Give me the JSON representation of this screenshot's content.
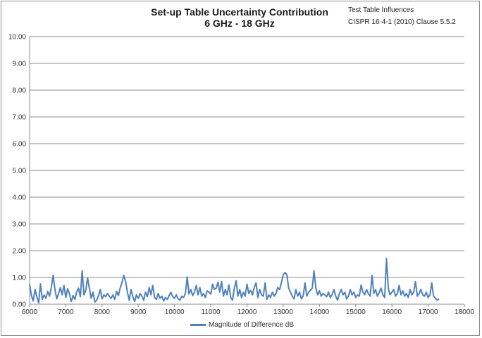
{
  "chart_data": {
    "type": "line",
    "title": "Set-up Table Uncertainty Contribution",
    "subtitle": "6 GHz - 18 GHz",
    "annotation": [
      "Test Table Influences",
      "CISPR 16-4-1 (2010) Clause 5.5.2"
    ],
    "xlabel": "",
    "ylabel": "",
    "xlim": [
      6000,
      18000
    ],
    "ylim": [
      0,
      10
    ],
    "x_ticks": [
      6000,
      7000,
      8000,
      9000,
      10000,
      11000,
      12000,
      13000,
      14000,
      15000,
      16000,
      17000,
      18000
    ],
    "y_ticks": [
      "0.00",
      "1.00",
      "2.00",
      "3.00",
      "4.00",
      "5.00",
      "6.00",
      "7.00",
      "8.00",
      "9.00",
      "10.00"
    ],
    "grid": {
      "horizontal": true,
      "vertical": false
    },
    "legend": "bottom",
    "colors": {
      "series": "#4f81bd",
      "axis": "#8c8c8c"
    },
    "series": [
      {
        "name": "Magnitude of Difference dB",
        "x_start": 6000,
        "x_step": 50,
        "values": [
          0.75,
          0.32,
          0.12,
          0.55,
          0.28,
          0.05,
          0.76,
          0.18,
          0.35,
          0.22,
          0.48,
          0.3,
          0.62,
          1.08,
          0.55,
          0.2,
          0.4,
          0.62,
          0.35,
          0.7,
          0.25,
          0.58,
          0.38,
          0.1,
          0.32,
          0.18,
          0.45,
          0.6,
          0.28,
          1.25,
          0.35,
          0.52,
          0.98,
          0.6,
          0.22,
          0.45,
          0.08,
          0.15,
          0.3,
          0.55,
          0.2,
          0.35,
          0.28,
          0.4,
          0.3,
          0.22,
          0.35,
          0.18,
          0.48,
          0.32,
          0.6,
          0.8,
          1.08,
          0.85,
          0.45,
          0.15,
          0.55,
          0.28,
          0.1,
          0.35,
          0.22,
          0.4,
          0.3,
          0.15,
          0.45,
          0.28,
          0.62,
          0.35,
          0.7,
          0.25,
          0.18,
          0.4,
          0.22,
          0.3,
          0.12,
          0.25,
          0.18,
          0.32,
          0.45,
          0.28,
          0.22,
          0.35,
          0.2,
          0.15,
          0.3,
          0.25,
          0.4,
          1.02,
          0.38,
          0.55,
          0.32,
          0.45,
          0.7,
          0.35,
          0.62,
          0.3,
          0.4,
          0.25,
          0.5,
          0.45,
          0.38,
          0.75,
          0.55,
          0.6,
          0.82,
          0.45,
          0.85,
          0.3,
          0.55,
          0.35,
          0.72,
          0.25,
          0.15,
          0.6,
          0.88,
          0.3,
          0.55,
          0.25,
          0.45,
          0.3,
          0.75,
          0.4,
          0.52,
          0.35,
          0.62,
          0.8,
          0.25,
          0.55,
          0.35,
          0.3,
          0.8,
          0.18,
          0.35,
          0.25,
          0.45,
          0.3,
          0.4,
          0.62,
          0.55,
          0.8,
          1.1,
          1.18,
          1.1,
          0.6,
          0.45,
          0.3,
          0.2,
          0.55,
          0.3,
          0.45,
          0.2,
          0.3,
          0.8,
          0.3,
          0.45,
          0.52,
          0.6,
          1.25,
          0.6,
          0.35,
          0.5,
          0.3,
          0.4,
          0.35,
          0.28,
          0.45,
          0.25,
          0.35,
          0.55,
          0.3,
          0.15,
          0.4,
          0.55,
          0.35,
          0.45,
          0.2,
          0.3,
          0.55,
          0.35,
          0.45,
          0.25,
          0.35,
          0.3,
          0.72,
          0.45,
          0.35,
          0.55,
          0.4,
          0.3,
          1.08,
          0.4,
          0.55,
          0.3,
          0.45,
          0.6,
          0.35,
          0.25,
          1.71,
          0.6,
          0.35,
          0.45,
          0.55,
          0.3,
          0.4,
          0.7,
          0.35,
          0.5,
          0.3,
          0.4,
          0.25,
          0.55,
          0.35,
          0.45,
          0.85,
          0.3,
          0.4,
          0.55,
          0.35,
          0.3,
          0.45,
          0.25,
          0.35,
          0.8,
          0.3,
          0.22,
          0.15,
          0.2
        ]
      }
    ]
  }
}
